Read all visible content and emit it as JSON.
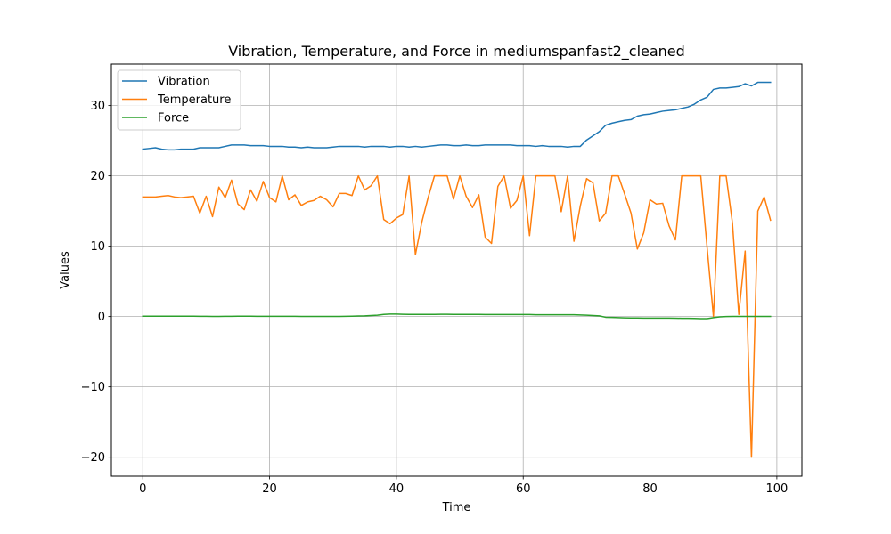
{
  "chart_data": {
    "type": "line",
    "title": "Vibration, Temperature, and Force in mediumspanfast2_cleaned",
    "xlabel": "Time",
    "ylabel": "Values",
    "xlim": [
      -4.95,
      103.95
    ],
    "ylim": [
      -22.7,
      35.9
    ],
    "xticks": [
      0,
      20,
      40,
      60,
      80,
      100
    ],
    "yticks": [
      -20,
      -10,
      0,
      10,
      20,
      30
    ],
    "xtick_labels": [
      "0",
      "20",
      "40",
      "60",
      "80",
      "100"
    ],
    "ytick_labels": [
      "−20",
      "−10",
      "0",
      "10",
      "20",
      "30"
    ],
    "grid": true,
    "legend_position": "top-left",
    "series": [
      {
        "name": "Vibration",
        "color": "#1f77b4",
        "values": [
          23.8,
          23.9,
          24.0,
          23.8,
          23.7,
          23.7,
          23.8,
          23.8,
          23.8,
          24.0,
          24.0,
          24.0,
          24.0,
          24.2,
          24.4,
          24.4,
          24.4,
          24.3,
          24.3,
          24.3,
          24.2,
          24.2,
          24.2,
          24.1,
          24.1,
          24.0,
          24.1,
          24.0,
          24.0,
          24.0,
          24.1,
          24.2,
          24.2,
          24.2,
          24.2,
          24.1,
          24.2,
          24.2,
          24.2,
          24.1,
          24.2,
          24.2,
          24.1,
          24.2,
          24.1,
          24.2,
          24.3,
          24.4,
          24.4,
          24.3,
          24.3,
          24.4,
          24.3,
          24.3,
          24.4,
          24.4,
          24.4,
          24.4,
          24.4,
          24.3,
          24.3,
          24.3,
          24.2,
          24.3,
          24.2,
          24.2,
          24.2,
          24.1,
          24.2,
          24.2,
          25.1,
          25.7,
          26.3,
          27.2,
          27.5,
          27.7,
          27.9,
          28.0,
          28.5,
          28.7,
          28.8,
          29.0,
          29.2,
          29.3,
          29.4,
          29.6,
          29.8,
          30.2,
          30.8,
          31.2,
          32.3,
          32.5,
          32.5,
          32.6,
          32.7,
          33.1,
          32.8,
          33.3,
          33.3,
          33.3
        ]
      },
      {
        "name": "Temperature",
        "color": "#ff7f0e",
        "values": [
          17.0,
          17.0,
          17.0,
          17.1,
          17.2,
          17.0,
          16.9,
          17.0,
          17.1,
          14.7,
          17.1,
          14.2,
          18.4,
          16.9,
          19.4,
          16.0,
          15.2,
          18.0,
          16.4,
          19.2,
          16.9,
          16.3,
          20.0,
          16.6,
          17.3,
          15.8,
          16.3,
          16.5,
          17.1,
          16.6,
          15.6,
          17.5,
          17.5,
          17.2,
          20.0,
          18.0,
          18.6,
          20.0,
          13.8,
          13.2,
          14.0,
          14.5,
          20.0,
          8.8,
          13.4,
          16.9,
          20.0,
          20.0,
          20.0,
          16.7,
          20.0,
          17.1,
          15.5,
          17.3,
          11.3,
          10.4,
          18.5,
          20.0,
          15.4,
          16.5,
          20.0,
          11.5,
          20.0,
          20.0,
          20.0,
          20.0,
          14.9,
          20.0,
          10.7,
          15.7,
          19.6,
          19.0,
          13.6,
          14.7,
          20.0,
          20.0,
          17.4,
          14.7,
          9.6,
          11.9,
          16.6,
          16.0,
          16.1,
          12.9,
          10.9,
          20.0,
          20.0,
          20.0,
          20.0,
          9.8,
          0.0,
          20.0,
          20.0,
          13.3,
          0.3,
          9.3,
          -20.0,
          15.0,
          17.0,
          13.7
        ]
      },
      {
        "name": "Force",
        "color": "#2ca02c",
        "values": [
          0.05,
          0.05,
          0.05,
          0.05,
          0.05,
          0.05,
          0.05,
          0.05,
          0.05,
          0.04,
          0.03,
          0.02,
          0.02,
          0.03,
          0.04,
          0.05,
          0.05,
          0.05,
          0.04,
          0.03,
          0.03,
          0.03,
          0.03,
          0.03,
          0.03,
          0.02,
          0.02,
          0.02,
          0.02,
          0.02,
          0.02,
          0.02,
          0.03,
          0.05,
          0.08,
          0.1,
          0.15,
          0.2,
          0.3,
          0.35,
          0.35,
          0.32,
          0.3,
          0.3,
          0.3,
          0.3,
          0.3,
          0.32,
          0.32,
          0.3,
          0.3,
          0.3,
          0.3,
          0.3,
          0.28,
          0.28,
          0.28,
          0.28,
          0.28,
          0.28,
          0.28,
          0.28,
          0.25,
          0.25,
          0.25,
          0.25,
          0.25,
          0.25,
          0.25,
          0.22,
          0.2,
          0.15,
          0.1,
          -0.1,
          -0.12,
          -0.15,
          -0.18,
          -0.2,
          -0.2,
          -0.22,
          -0.22,
          -0.22,
          -0.22,
          -0.22,
          -0.23,
          -0.25,
          -0.25,
          -0.27,
          -0.3,
          -0.3,
          -0.15,
          -0.05,
          0.0,
          0.02,
          0.02,
          0.02,
          0.02,
          0.02,
          0.02,
          0.02
        ]
      }
    ]
  }
}
